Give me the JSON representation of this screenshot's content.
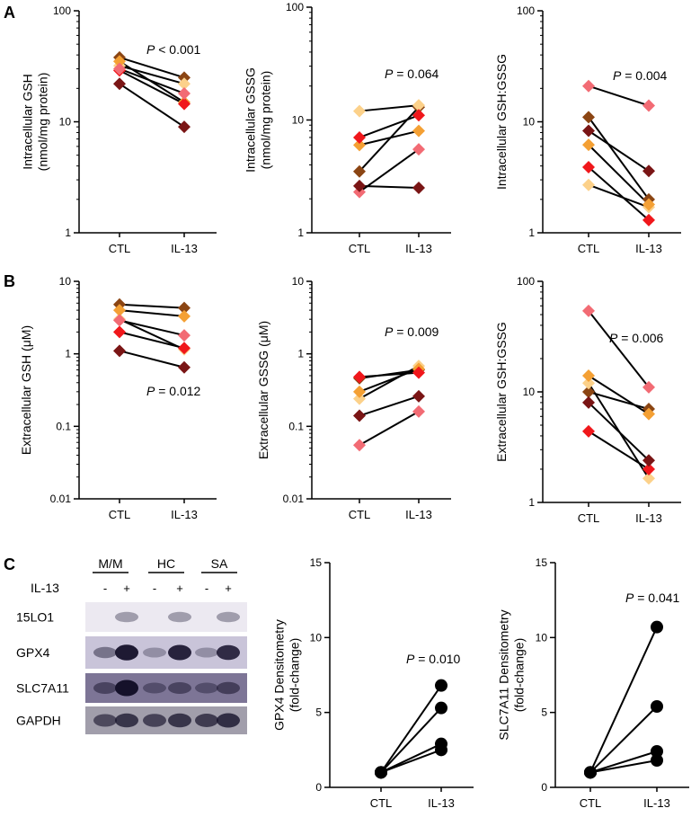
{
  "panel_letters": [
    "A",
    "B",
    "C"
  ],
  "colors": {
    "series": [
      "#8b4513",
      "#fcd18a",
      "#f4a034",
      "#f0171b",
      "#f26b74",
      "#7a1515"
    ],
    "line": "#000000",
    "black": "#000000"
  },
  "blot": {
    "condition_label": "IL-13",
    "groups": [
      "M/M",
      "HC",
      "SA"
    ],
    "signs": [
      "-",
      "+",
      "-",
      "+",
      "-",
      "+"
    ],
    "bands": [
      "15LO1",
      "GPX4",
      "SLC7A11",
      "GAPDH"
    ]
  },
  "chart_data": [
    {
      "id": "A1",
      "type": "line",
      "scale": "log",
      "ylabel": [
        "Intracellular GSH",
        "(nmol/mg protein)"
      ],
      "categories": [
        "CTL",
        "IL-13"
      ],
      "ylim": [
        1,
        100
      ],
      "yticks": [
        1,
        10,
        100
      ],
      "yticklabels": [
        "1",
        "10",
        "100"
      ],
      "p_prefix": "P",
      "p_text": " < 0.001",
      "series": [
        {
          "name": "S1",
          "marker": "diamond",
          "values": [
            38,
            25
          ]
        },
        {
          "name": "S2",
          "marker": "diamond",
          "values": [
            32,
            22
          ]
        },
        {
          "name": "S3",
          "marker": "diamond",
          "values": [
            35,
            15
          ]
        },
        {
          "name": "S4",
          "marker": "diamond",
          "values": [
            29,
            14.5
          ]
        },
        {
          "name": "S5",
          "marker": "diamond",
          "values": [
            30,
            18
          ]
        },
        {
          "name": "S6",
          "marker": "diamond",
          "values": [
            22,
            9
          ]
        }
      ]
    },
    {
      "id": "A2",
      "type": "line",
      "scale": "log",
      "ylabel": [
        "Intracellular GSSG",
        "(nmol/mg protein)"
      ],
      "categories": [
        "CTL",
        "IL-13"
      ],
      "ylim": [
        1,
        100
      ],
      "yticks": [
        1,
        10,
        100
      ],
      "yticklabels": [
        "1",
        "10",
        "100"
      ],
      "p_prefix": "P",
      "p_text": " = 0.064",
      "series": [
        {
          "name": "S1",
          "marker": "diamond",
          "values": [
            3.5,
            13
          ]
        },
        {
          "name": "S2",
          "marker": "diamond",
          "values": [
            12,
            13.5
          ]
        },
        {
          "name": "S3",
          "marker": "diamond",
          "values": [
            6,
            8
          ]
        },
        {
          "name": "S4",
          "marker": "diamond",
          "values": [
            7,
            11
          ]
        },
        {
          "name": "S5",
          "marker": "diamond",
          "values": [
            2.3,
            5.5
          ]
        },
        {
          "name": "S6",
          "marker": "diamond",
          "values": [
            2.6,
            2.5
          ]
        }
      ]
    },
    {
      "id": "A3",
      "type": "line",
      "scale": "log",
      "ylabel": [
        "Intracellular GSH:GSSG"
      ],
      "categories": [
        "CTL",
        "IL-13"
      ],
      "ylim": [
        1,
        100
      ],
      "yticks": [
        1,
        10,
        100
      ],
      "yticklabels": [
        "1",
        "10",
        "100"
      ],
      "p_prefix": "P",
      "p_text": " = 0.004",
      "series": [
        {
          "name": "S1",
          "marker": "diamond",
          "values": [
            11,
            2
          ]
        },
        {
          "name": "S2",
          "marker": "diamond",
          "values": [
            2.7,
            1.7
          ]
        },
        {
          "name": "S3",
          "marker": "diamond",
          "values": [
            6.2,
            1.8
          ]
        },
        {
          "name": "S4",
          "marker": "diamond",
          "values": [
            3.9,
            1.3
          ]
        },
        {
          "name": "S5",
          "marker": "diamond",
          "values": [
            21,
            14
          ]
        },
        {
          "name": "S6",
          "marker": "diamond",
          "values": [
            8.3,
            3.6
          ]
        }
      ]
    },
    {
      "id": "B1",
      "type": "line",
      "scale": "log",
      "ylabel": [
        "Extracellular GSH (μM)"
      ],
      "categories": [
        "CTL",
        "IL-13"
      ],
      "ylim": [
        0.01,
        10
      ],
      "yticks": [
        0.01,
        0.1,
        1,
        10
      ],
      "yticklabels": [
        "0.01",
        "0.1",
        "1",
        "10"
      ],
      "p_prefix": "P",
      "p_text": " = 0.012",
      "series": [
        {
          "name": "S1",
          "marker": "diamond",
          "values": [
            4.8,
            4.3
          ]
        },
        {
          "name": "S2",
          "marker": "diamond",
          "values": [
            3.0,
            1.15
          ]
        },
        {
          "name": "S3",
          "marker": "diamond",
          "values": [
            4.0,
            3.3
          ]
        },
        {
          "name": "S4",
          "marker": "diamond",
          "values": [
            2.0,
            1.2
          ]
        },
        {
          "name": "S5",
          "marker": "diamond",
          "values": [
            2.9,
            1.8
          ]
        },
        {
          "name": "S6",
          "marker": "diamond",
          "values": [
            1.1,
            0.65
          ]
        }
      ]
    },
    {
      "id": "B2",
      "type": "line",
      "scale": "log",
      "ylabel": [
        "Extracellular GSSG (μM)"
      ],
      "categories": [
        "CTL",
        "IL-13"
      ],
      "ylim": [
        0.01,
        10
      ],
      "yticks": [
        0.01,
        0.1,
        1,
        10
      ],
      "yticklabels": [
        "0.01",
        "0.1",
        "1",
        "10"
      ],
      "p_prefix": "P",
      "p_text": " = 0.009",
      "series": [
        {
          "name": "S1",
          "marker": "diamond",
          "values": [
            0.46,
            0.6
          ]
        },
        {
          "name": "S2",
          "marker": "diamond",
          "values": [
            0.24,
            0.68
          ]
        },
        {
          "name": "S3",
          "marker": "diamond",
          "values": [
            0.3,
            0.62
          ]
        },
        {
          "name": "S4",
          "marker": "diamond",
          "values": [
            0.48,
            0.55
          ]
        },
        {
          "name": "S5",
          "marker": "diamond",
          "values": [
            0.055,
            0.16
          ]
        },
        {
          "name": "S6",
          "marker": "diamond",
          "values": [
            0.14,
            0.26
          ]
        }
      ]
    },
    {
      "id": "B3",
      "type": "line",
      "scale": "log",
      "ylabel": [
        "Extracellular GSH:GSSG"
      ],
      "categories": [
        "CTL",
        "IL-13"
      ],
      "ylim": [
        1,
        100
      ],
      "yticks": [
        1,
        10,
        100
      ],
      "yticklabels": [
        "1",
        "10",
        "100"
      ],
      "p_prefix": "P",
      "p_text": " = 0.006",
      "series": [
        {
          "name": "S1",
          "marker": "diamond",
          "values": [
            10,
            7
          ]
        },
        {
          "name": "S2",
          "marker": "diamond",
          "values": [
            12,
            1.65
          ]
        },
        {
          "name": "S3",
          "marker": "diamond",
          "values": [
            14,
            6.3
          ]
        },
        {
          "name": "S4",
          "marker": "diamond",
          "values": [
            4.4,
            2
          ]
        },
        {
          "name": "S5",
          "marker": "diamond",
          "values": [
            54,
            11
          ]
        },
        {
          "name": "S6",
          "marker": "diamond",
          "values": [
            8,
            2.4
          ]
        }
      ]
    },
    {
      "id": "C2",
      "type": "line",
      "scale": "linear",
      "ylabel": [
        "GPX4 Densitometry",
        "(fold-change)"
      ],
      "categories": [
        "CTL",
        "IL-13"
      ],
      "ylim": [
        0,
        15
      ],
      "yticks": [
        0,
        5,
        10,
        15
      ],
      "yticklabels": [
        "0",
        "5",
        "10",
        "15"
      ],
      "p_prefix": "P",
      "p_text": " = 0.010",
      "series": [
        {
          "name": "S1",
          "marker": "circle",
          "values": [
            1,
            6.8
          ]
        },
        {
          "name": "S2",
          "marker": "circle",
          "values": [
            1,
            5.3
          ]
        },
        {
          "name": "S3",
          "marker": "circle",
          "values": [
            1,
            2.9
          ]
        },
        {
          "name": "S4",
          "marker": "circle",
          "values": [
            1,
            2.5
          ]
        }
      ]
    },
    {
      "id": "C3",
      "type": "line",
      "scale": "linear",
      "ylabel": [
        "SLC7A11 Densitometry",
        "(fold-change)"
      ],
      "categories": [
        "CTL",
        "IL-13"
      ],
      "ylim": [
        0,
        15
      ],
      "yticks": [
        0,
        5,
        10,
        15
      ],
      "yticklabels": [
        "0",
        "5",
        "10",
        "15"
      ],
      "p_prefix": "P",
      "p_text": " = 0.041",
      "series": [
        {
          "name": "S1",
          "marker": "circle",
          "values": [
            1,
            10.7
          ]
        },
        {
          "name": "S2",
          "marker": "circle",
          "values": [
            1,
            5.4
          ]
        },
        {
          "name": "S3",
          "marker": "circle",
          "values": [
            1,
            2.4
          ]
        },
        {
          "name": "S4",
          "marker": "circle",
          "values": [
            1,
            1.8
          ]
        }
      ]
    }
  ]
}
